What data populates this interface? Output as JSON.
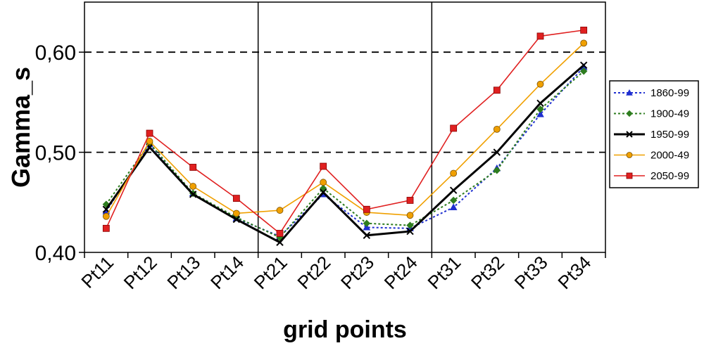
{
  "chart_data": {
    "type": "line",
    "xlabel": "grid points",
    "ylabel": "Gamma_s",
    "categories": [
      "Pt11",
      "Pt12",
      "Pt13",
      "Pt14",
      "Pt21",
      "Pt22",
      "Pt23",
      "Pt24",
      "Pt31",
      "Pt32",
      "Pt33",
      "Pt34"
    ],
    "ylim": [
      0.4,
      0.65
    ],
    "yticks": [
      0.4,
      0.5,
      0.6
    ],
    "ytick_labels": [
      "0,40",
      "0,50",
      "0,60"
    ],
    "dashed_reference_lines": [
      0.5,
      0.6
    ],
    "group_separators_after_index": [
      3,
      7
    ],
    "legend": {
      "placement": "right"
    },
    "series": [
      {
        "name": "1860-99",
        "color": "#1f2fd0",
        "style": "dotted",
        "marker": "triangle",
        "values": [
          0.441,
          0.508,
          0.459,
          0.434,
          0.416,
          0.458,
          0.425,
          0.424,
          0.445,
          0.484,
          0.538,
          0.585
        ]
      },
      {
        "name": "1900-49",
        "color": "#2e7d1f",
        "style": "dotted",
        "marker": "diamond",
        "values": [
          0.448,
          0.509,
          0.459,
          0.435,
          0.415,
          0.464,
          0.429,
          0.427,
          0.452,
          0.482,
          0.543,
          0.581
        ]
      },
      {
        "name": "1950-99",
        "color": "#000000",
        "style": "solid-thick",
        "marker": "x",
        "values": [
          0.443,
          0.505,
          0.458,
          0.433,
          0.41,
          0.46,
          0.417,
          0.421,
          0.462,
          0.5,
          0.549,
          0.587
        ]
      },
      {
        "name": "2000-49",
        "color": "#f0a000",
        "style": "solid",
        "marker": "circle",
        "values": [
          0.436,
          0.511,
          0.466,
          0.439,
          0.442,
          0.47,
          0.44,
          0.437,
          0.479,
          0.523,
          0.568,
          0.609
        ]
      },
      {
        "name": "2050-99",
        "color": "#e02020",
        "style": "solid",
        "marker": "square",
        "values": [
          0.424,
          0.519,
          0.485,
          0.454,
          0.419,
          0.486,
          0.443,
          0.452,
          0.524,
          0.562,
          0.616,
          0.622
        ]
      }
    ]
  }
}
